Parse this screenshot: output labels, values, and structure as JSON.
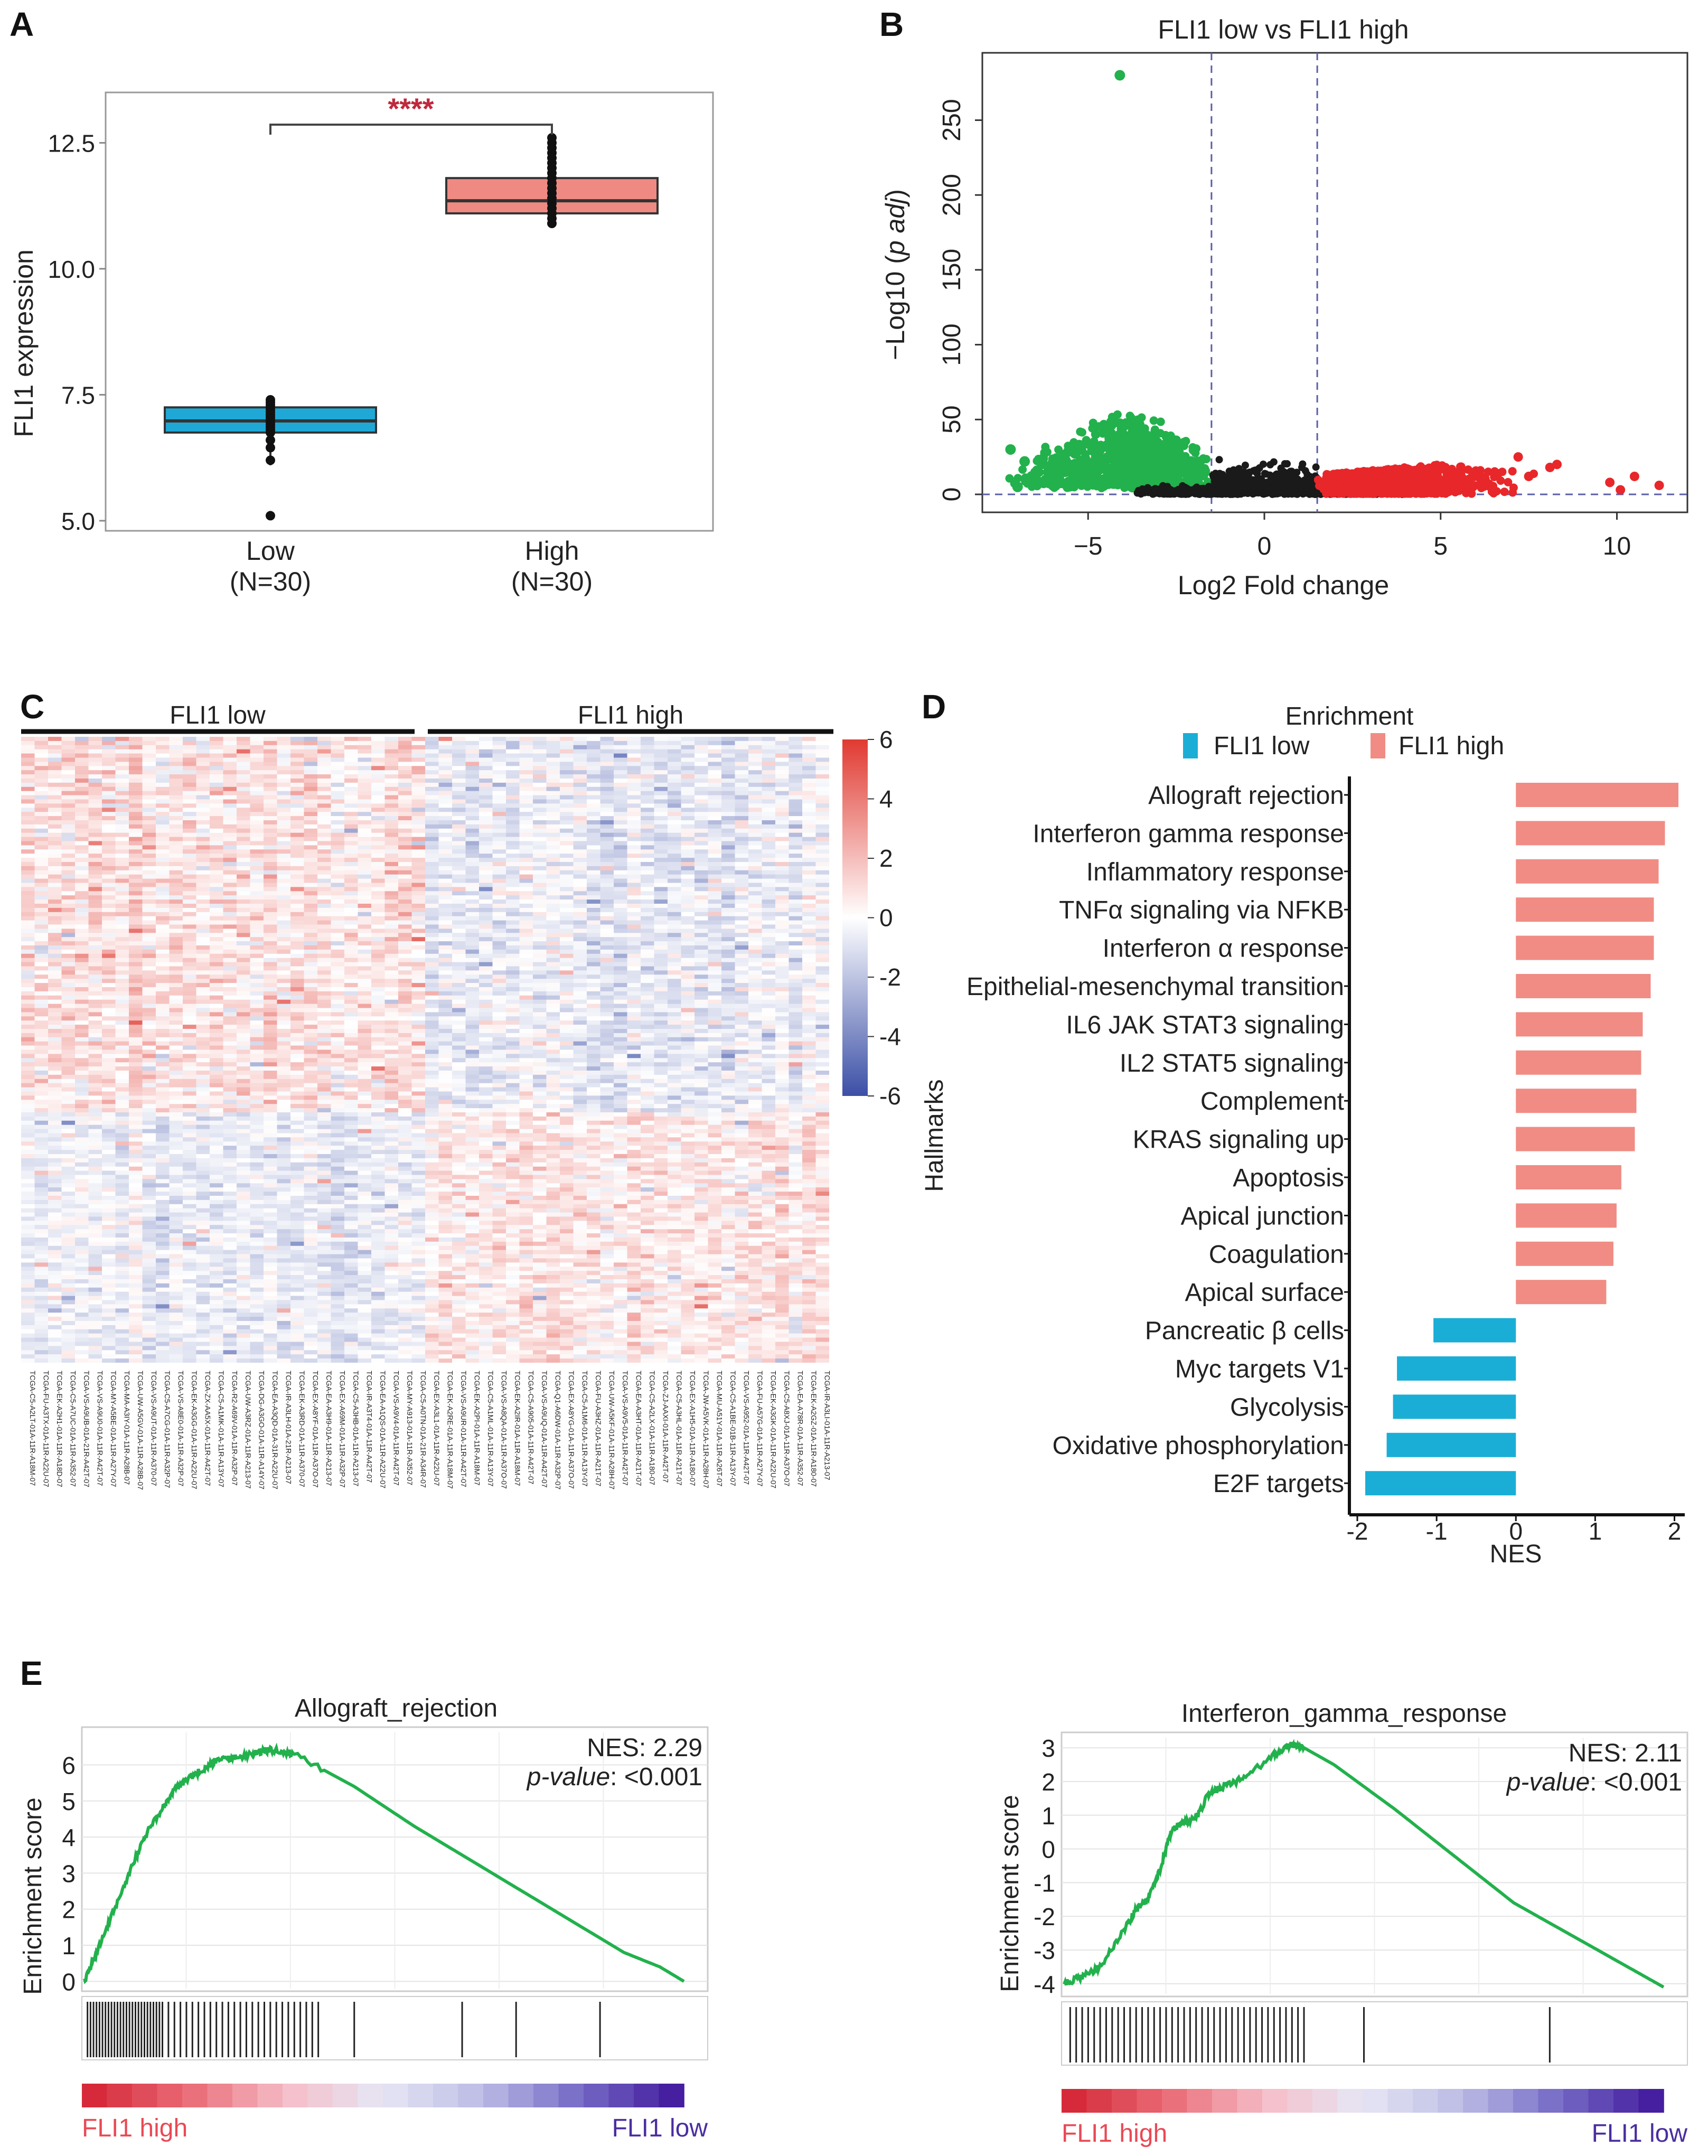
{
  "panel_labels": [
    "A",
    "B",
    "C",
    "D",
    "E"
  ],
  "chart_data": [
    {
      "id": "A",
      "type": "box",
      "title": "",
      "xlabel": "",
      "ylabel": "FLI1 expression",
      "ylim": [
        4.8,
        13.5
      ],
      "yticks": [
        "5.0",
        "7.5",
        "10.0",
        "12.5"
      ],
      "ytick_values": [
        5.0,
        7.5,
        10.0,
        12.5
      ],
      "groups": [
        {
          "name": "Low",
          "n_label": "(N=30)",
          "color": "#1fa8d6",
          "min": 6.1,
          "q1": 6.75,
          "median": 6.98,
          "q3": 7.25,
          "max": 7.4,
          "outliers": [
            5.1
          ],
          "points": [
            6.2,
            6.45,
            6.6,
            6.75,
            6.8,
            6.85,
            6.9,
            6.95,
            7.0,
            7.05,
            7.1,
            7.15,
            7.2,
            7.25,
            7.3,
            7.35,
            7.4
          ]
        },
        {
          "name": "High",
          "n_label": "(N=30)",
          "color": "#ef8a82",
          "min": 10.9,
          "q1": 11.1,
          "median": 11.35,
          "q3": 11.8,
          "max": 12.6,
          "outliers": [],
          "points": [
            10.9,
            11.0,
            11.1,
            11.2,
            11.3,
            11.4,
            11.5,
            11.6,
            11.7,
            11.8,
            11.9,
            12.0,
            12.1,
            12.2,
            12.3,
            12.4,
            12.5,
            12.6
          ]
        }
      ],
      "significance": "****",
      "significance_color": "#c0283d"
    },
    {
      "id": "B",
      "type": "scatter",
      "title": "FLI1 low vs FLI1 high",
      "xlabel": "Log2 Fold change",
      "ylabel": "−Log10 (p adj)",
      "ylabel_parts": [
        "−Log10 (",
        "p adj",
        ")"
      ],
      "xlim": [
        -8,
        12
      ],
      "ylim": [
        -12,
        295
      ],
      "xticks": [
        "−5",
        "0",
        "5",
        "10"
      ],
      "xtick_values": [
        -5,
        0,
        5,
        10
      ],
      "yticks": [
        "0",
        "50",
        "100",
        "150",
        "200",
        "250"
      ],
      "ytick_values": [
        0,
        50,
        100,
        150,
        200,
        250
      ],
      "vlines": [
        -1.5,
        1.5
      ],
      "hline": 0,
      "colors": {
        "down": "#22b14c",
        "up": "#e8272a",
        "ns": "#1a1a1a"
      },
      "highlight_points": [
        {
          "x": -4.1,
          "y": 280
        },
        {
          "x": -7.2,
          "y": 30
        },
        {
          "x": -7.0,
          "y": 5
        },
        {
          "x": -6.8,
          "y": 22
        },
        {
          "x": -6.6,
          "y": 12
        }
      ],
      "up_outliers": [
        {
          "x": 7.5,
          "y": 12
        },
        {
          "x": 8.1,
          "y": 18
        },
        {
          "x": 8.3,
          "y": 20
        },
        {
          "x": 7.2,
          "y": 25
        },
        {
          "x": 9.8,
          "y": 8
        },
        {
          "x": 10.5,
          "y": 12
        },
        {
          "x": 11.2,
          "y": 6
        },
        {
          "x": 10.1,
          "y": 3
        }
      ]
    },
    {
      "id": "C",
      "type": "heatmap",
      "groups": [
        "FLI1 low",
        "FLI1 high"
      ],
      "n_samples": 60,
      "colorbar_ticks": [
        "6",
        "4",
        "2",
        "0",
        "-2",
        "-4",
        "-6"
      ],
      "colorbar_values": [
        6,
        4,
        2,
        0,
        -2,
        -4,
        -6
      ],
      "colors": {
        "high": "#e03a31",
        "mid": "#ffffff",
        "low": "#3b4fa6"
      },
      "sample_labels": [
        "TCGA-C5-A2LT-01A-11R-A18M-07",
        "TCGA-FU-A3TX-01A-11R-A22U-07",
        "TCGA-EK-A2H1-01A-11R-A18D-07",
        "TCGA-C5-A7UC-01A-11R-A352-07",
        "TCGA-VS-A9UB-01A-21R-A42T-07",
        "TCGA-VS-A9U0-01A-11R-A42T-07",
        "TCGA-MY-A5BE-01A-11R-A27Y-07",
        "TCGA-MA-A3IY-01A-11R-A28B-07",
        "TCGA-UW-A5GV-01A-11R-A28B-07",
        "TCGA-VS-A9UT-01A-11R-A370-07",
        "TCGA-C5-A7CG-01A-11R-A32P-07",
        "TCGA-VS-A8E0-01A-11R-A32P-07",
        "TCGA-EK-A3GG-01A-11R-A22U-07",
        "TCGA-ZX-AA5X-01A-11R-A42T-07",
        "TCGA-C5-A1MK-01A-11R-A13Y-07",
        "TCGA-R2-A69V-01A-11R-A32P-07",
        "TCGA-UW-A3RZ-01A-11R-A213-07",
        "TCGA-DG-A3GO-01A-11R-A14Y-07",
        "TCGA-EA-A3QD-01A-31R-A22U-07",
        "TCGA-IR-A3LH-01A-21R-A213-07",
        "TCGA-EK-A3RD-01A-11R-A370-07",
        "TCGA-EX-A8YF-01A-11R-A37O-07",
        "TCGA-EA-A3H9-01A-11R-A213-07",
        "TCGA-EX-A69M-01A-11R-A32P-07",
        "TCGA-C5-A3HB-01A-11R-A213-07",
        "TCGA-IR-A3T4-01A-11R-A42T-07",
        "TCGA-EA-A1QS-01A-11R-A22U-07",
        "TCGA-VS-A9V4-01A-11R-A42T-07",
        "TCGA-MY-A913-01A-11R-A352-07",
        "TCGA-C5-A0TN-01A-21R-A34R-07",
        "TCGA-EX-A3L1-01A-11R-A22U-07",
        "TCGA-EK-A2RE-01A-11R-A18M-07",
        "TCGA-VS-A9UR-01A-11R-A42T-07",
        "TCGA-EK-A2PI-01A-11R-A18M-07",
        "TCGA-C5-A1ML-01A-11R-A13Y-07",
        "TCGA-VS-A8QA-01A-11R-A37O-07",
        "TCGA-EK-A2IR-01A-11R-A18M-07",
        "TCGA-C5-A905-01A-11R-A42T-07",
        "TCGA-VS-A9UQ-01A-11R-A42T-07",
        "TCGA-Q1-A6DW-01A-11R-A32P-07",
        "TCGA-EX-A8YG-01A-11R-A37O-07",
        "TCGA-C5-A1M6-01A-11R-A13Y-07",
        "TCGA-FU-A3HZ-01A-11R-A21T-07",
        "TCGA-UW-A5KF-01A-11R-A28H-07",
        "TCGA-VS-A9V5-01A-11R-A42T-07",
        "TCGA-EA-A3HT-01A-11R-A21T-07",
        "TCGA-C5-A2LX-01A-11R-A180-07",
        "TCGA-ZJ-AAXI-01A-11R-A42T-07",
        "TCGA-C5-A3HL-01A-11R-A21T-07",
        "TCGA-EX-A1H5-01A-11R-A180-07",
        "TCGA-JW-A5VK-01A-11R-A28H-07",
        "TCGA-MU-A51Y-01A-11R-A26T-07",
        "TCGA-C5-A1BE-01B-11R-A13Y-07",
        "TCGA-VS-A952-01A-11R-A42T-07",
        "TCGA-FU-A57G-01A-11R-A27Y-07",
        "TCGA-EK-A3GK-01A-11R-A22U-07",
        "TCGA-C5-A8XJ-01A-11R-A37O-07",
        "TCGA-EA-A78R-01A-11R-A352-07",
        "TCGA-EK-A2GZ-01A-11R-A180-07",
        "TCGA-IR-A3LI-01A-11R-A213-07"
      ]
    },
    {
      "id": "D",
      "type": "bar",
      "orientation": "horizontal",
      "legend_title": "Enrichment",
      "legend": [
        {
          "name": "FLI1 low",
          "color": "#1aaed6"
        },
        {
          "name": "FLI1 high",
          "color": "#f08c84"
        }
      ],
      "ylabel": "Hallmarks",
      "xlabel": "NES",
      "xlim": [
        -2.1,
        2.05
      ],
      "xticks": [
        "-2",
        "-1",
        "0",
        "1",
        "2"
      ],
      "xtick_values": [
        -2,
        -1,
        0,
        1,
        2
      ],
      "categories": [
        "Allograft rejection",
        "Interferon gamma response",
        "Inflammatory response",
        "TNFα signaling via NFKB",
        "Interferon α response",
        "Epithelial-mesenchymal transition",
        "IL6 JAK STAT3 signaling",
        "IL2 STAT5 signaling",
        "Complement",
        "KRAS signaling up",
        "Apoptosis",
        "Apical junction",
        "Coagulation",
        "Apical surface",
        "Pancreatic β cells",
        "Myc targets V1",
        "Glycolysis",
        "Oxidative phosphorylation",
        "E2F targets"
      ],
      "values": [
        2.05,
        1.88,
        1.8,
        1.74,
        1.74,
        1.7,
        1.6,
        1.58,
        1.52,
        1.5,
        1.33,
        1.27,
        1.23,
        1.14,
        -1.04,
        -1.5,
        -1.55,
        -1.63,
        -1.9
      ]
    },
    {
      "id": "E1",
      "type": "line",
      "title": "Allograft_rejection",
      "ylabel": "Enrichment score",
      "nes_label": "NES: 2.29",
      "pvalue_label": "p-value",
      "pvalue_text": ": <0.001",
      "ylim": [
        -0.2,
        6.9
      ],
      "yticks": [
        "0",
        "1",
        "2",
        "3",
        "4",
        "5",
        "6"
      ],
      "ytick_values": [
        0,
        1,
        2,
        3,
        4,
        5,
        6
      ],
      "x": [
        0,
        0.02,
        0.05,
        0.08,
        0.1,
        0.13,
        0.15,
        0.17,
        0.2,
        0.22,
        0.25,
        0.28,
        0.3,
        0.32,
        0.35,
        0.45,
        0.55,
        0.65,
        0.75,
        0.85,
        0.9,
        0.96,
        1.0
      ],
      "values": [
        0.0,
        0.8,
        2.0,
        3.2,
        4.0,
        4.8,
        5.3,
        5.6,
        5.9,
        6.1,
        6.2,
        6.3,
        6.4,
        6.42,
        6.3,
        5.4,
        4.3,
        3.3,
        2.3,
        1.3,
        0.8,
        0.4,
        0.0
      ],
      "color": "#22b14c",
      "hit_positions": [
        0.005,
        0.01,
        0.015,
        0.02,
        0.025,
        0.03,
        0.035,
        0.04,
        0.045,
        0.05,
        0.055,
        0.06,
        0.065,
        0.07,
        0.075,
        0.08,
        0.085,
        0.09,
        0.095,
        0.1,
        0.105,
        0.11,
        0.115,
        0.12,
        0.125,
        0.13,
        0.14,
        0.15,
        0.16,
        0.17,
        0.18,
        0.19,
        0.2,
        0.21,
        0.22,
        0.23,
        0.24,
        0.25,
        0.26,
        0.27,
        0.28,
        0.29,
        0.3,
        0.31,
        0.32,
        0.33,
        0.34,
        0.35,
        0.36,
        0.37,
        0.38,
        0.39,
        0.45,
        0.63,
        0.72,
        0.86
      ],
      "bar_left_label": "FLI1 high",
      "bar_right_label": "FLI1 low"
    },
    {
      "id": "E2",
      "type": "line",
      "title": "Interferon_gamma_response",
      "ylabel": "Enrichment score",
      "nes_label": "NES: 2.11",
      "pvalue_label": "p-value",
      "pvalue_text": ": <0.001",
      "ylim": [
        -4.3,
        3.3
      ],
      "yticks": [
        "-4",
        "-3",
        "-2",
        "-1",
        "0",
        "1",
        "2",
        "3"
      ],
      "ytick_values": [
        -4,
        -3,
        -2,
        -1,
        0,
        1,
        2,
        3
      ],
      "x": [
        0,
        0.03,
        0.06,
        0.1,
        0.12,
        0.14,
        0.16,
        0.18,
        0.2,
        0.22,
        0.24,
        0.26,
        0.3,
        0.35,
        0.38,
        0.4,
        0.45,
        0.55,
        0.65,
        0.75,
        0.85,
        0.95,
        1.0
      ],
      "values": [
        -4.0,
        -3.8,
        -3.5,
        -2.4,
        -1.8,
        -1.5,
        -0.6,
        0.6,
        0.8,
        0.9,
        1.6,
        1.8,
        2.1,
        2.8,
        3.1,
        3.0,
        2.5,
        1.2,
        -0.2,
        -1.6,
        -2.6,
        -3.6,
        -4.1
      ],
      "color": "#22b14c",
      "hit_positions": [
        0.01,
        0.02,
        0.03,
        0.04,
        0.05,
        0.06,
        0.07,
        0.08,
        0.09,
        0.1,
        0.11,
        0.12,
        0.13,
        0.14,
        0.15,
        0.16,
        0.17,
        0.18,
        0.19,
        0.2,
        0.21,
        0.22,
        0.23,
        0.24,
        0.25,
        0.26,
        0.27,
        0.28,
        0.29,
        0.3,
        0.31,
        0.32,
        0.33,
        0.34,
        0.35,
        0.36,
        0.37,
        0.38,
        0.39,
        0.4,
        0.5,
        0.81
      ],
      "bar_left_label": "FLI1 high",
      "bar_right_label": "FLI1 low"
    }
  ]
}
